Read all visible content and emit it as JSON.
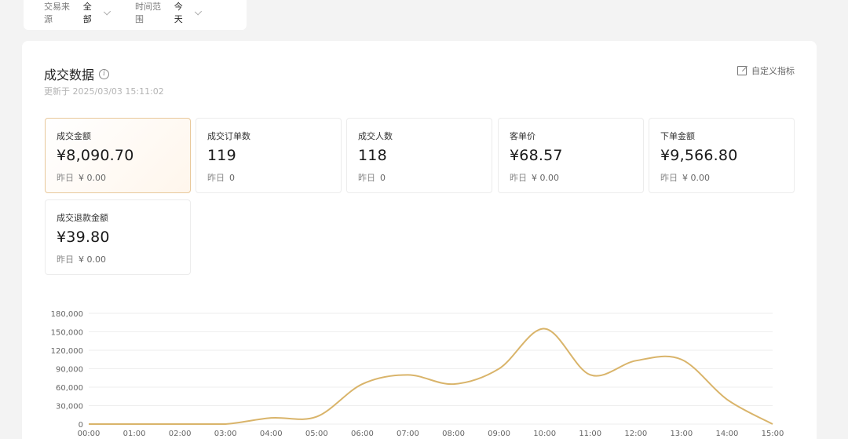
{
  "filters": [
    {
      "label": "交易来源",
      "value": "全部"
    },
    {
      "label": "时间范围",
      "value": "今天"
    }
  ],
  "panel": {
    "title": "成交数据",
    "updated": "更新于 2025/03/03 15:11:02",
    "custom_label": "自定义指标"
  },
  "cards": [
    {
      "label": "成交金额",
      "value": "¥8,090.70",
      "prev_label": "昨日",
      "prev_value": "¥ 0.00",
      "active": true
    },
    {
      "label": "成交订单数",
      "value": "119",
      "prev_label": "昨日",
      "prev_value": "0"
    },
    {
      "label": "成交人数",
      "value": "118",
      "prev_label": "昨日",
      "prev_value": "0"
    },
    {
      "label": "客单价",
      "value": "¥68.57",
      "prev_label": "昨日",
      "prev_value": "¥ 0.00"
    },
    {
      "label": "下单金额",
      "value": "¥9,566.80",
      "prev_label": "昨日",
      "prev_value": "¥ 0.00"
    },
    {
      "label": "成交退款金额",
      "value": "¥39.80",
      "prev_label": "昨日",
      "prev_value": "¥ 0.00"
    }
  ],
  "colors": {
    "line": "#d9b46a",
    "grid": "#eeeeee",
    "axis_text": "#666666",
    "active_border": "#e8c89a"
  },
  "chart_data": {
    "type": "line",
    "categories": [
      "00:00",
      "01:00",
      "02:00",
      "03:00",
      "04:00",
      "05:00",
      "06:00",
      "07:00",
      "08:00",
      "09:00",
      "10:00",
      "11:00",
      "12:00",
      "13:00",
      "14:00",
      "15:00"
    ],
    "series": [
      {
        "values": [
          0,
          0,
          0,
          0,
          10000,
          12000,
          65000,
          80000,
          65000,
          90000,
          155000,
          80000,
          103000,
          105000,
          40000,
          0
        ]
      }
    ],
    "y_ticks": [
      "0",
      "30,000",
      "60,000",
      "90,000",
      "120,000",
      "150,000",
      "180,000"
    ],
    "ylim": [
      0,
      180000
    ],
    "grid": true
  }
}
